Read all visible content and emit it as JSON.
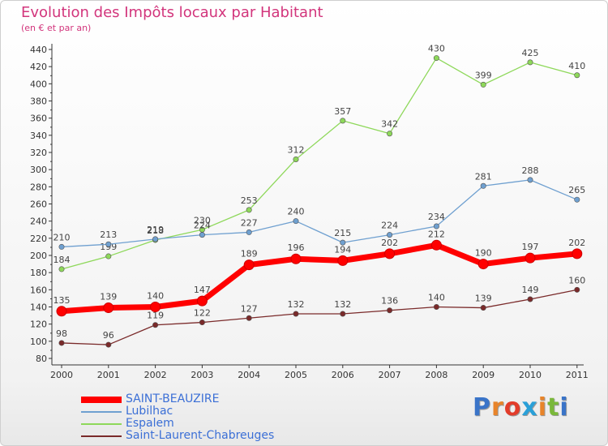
{
  "title": "Evolution des Impôts locaux par Habitant",
  "subtitle": "(en € et par an)",
  "brand": {
    "text": "Proxiti",
    "letter_colors": [
      "#3a74c8",
      "#e8842a",
      "#e23c2a",
      "#2aa0d8",
      "#e8842a",
      "#7ab83a",
      "#3a74c8"
    ]
  },
  "chart_data": {
    "type": "line",
    "title": "Evolution des Impôts locaux par Habitant",
    "xlabel": "",
    "ylabel": "",
    "x": [
      "2000",
      "2001",
      "2002",
      "2003",
      "2004",
      "2005",
      "2006",
      "2007",
      "2008",
      "2009",
      "2010",
      "2011"
    ],
    "ylim": [
      80,
      440
    ],
    "yticks": [
      80,
      100,
      120,
      140,
      160,
      180,
      200,
      220,
      240,
      260,
      280,
      300,
      320,
      340,
      360,
      380,
      400,
      420,
      440
    ],
    "grid": false,
    "legend_position": "bottom-left",
    "series": [
      {
        "name": "SAINT-BEAUZIRE",
        "color": "#ff0000",
        "values": [
          135,
          139,
          140,
          147,
          189,
          196,
          194,
          202,
          212,
          190,
          197,
          202
        ]
      },
      {
        "name": "Lubilhac",
        "color": "#6fa0d0",
        "values": [
          210,
          213,
          219,
          224,
          227,
          240,
          215,
          224,
          234,
          281,
          288,
          265
        ]
      },
      {
        "name": "Espalem",
        "color": "#8ed85a",
        "values": [
          184,
          199,
          218,
          230,
          253,
          312,
          357,
          342,
          430,
          399,
          425,
          410
        ]
      },
      {
        "name": "Saint-Laurent-Chabreuges",
        "color": "#7a2a2a",
        "values": [
          98,
          96,
          119,
          122,
          127,
          132,
          132,
          136,
          140,
          139,
          149,
          160
        ]
      }
    ]
  }
}
